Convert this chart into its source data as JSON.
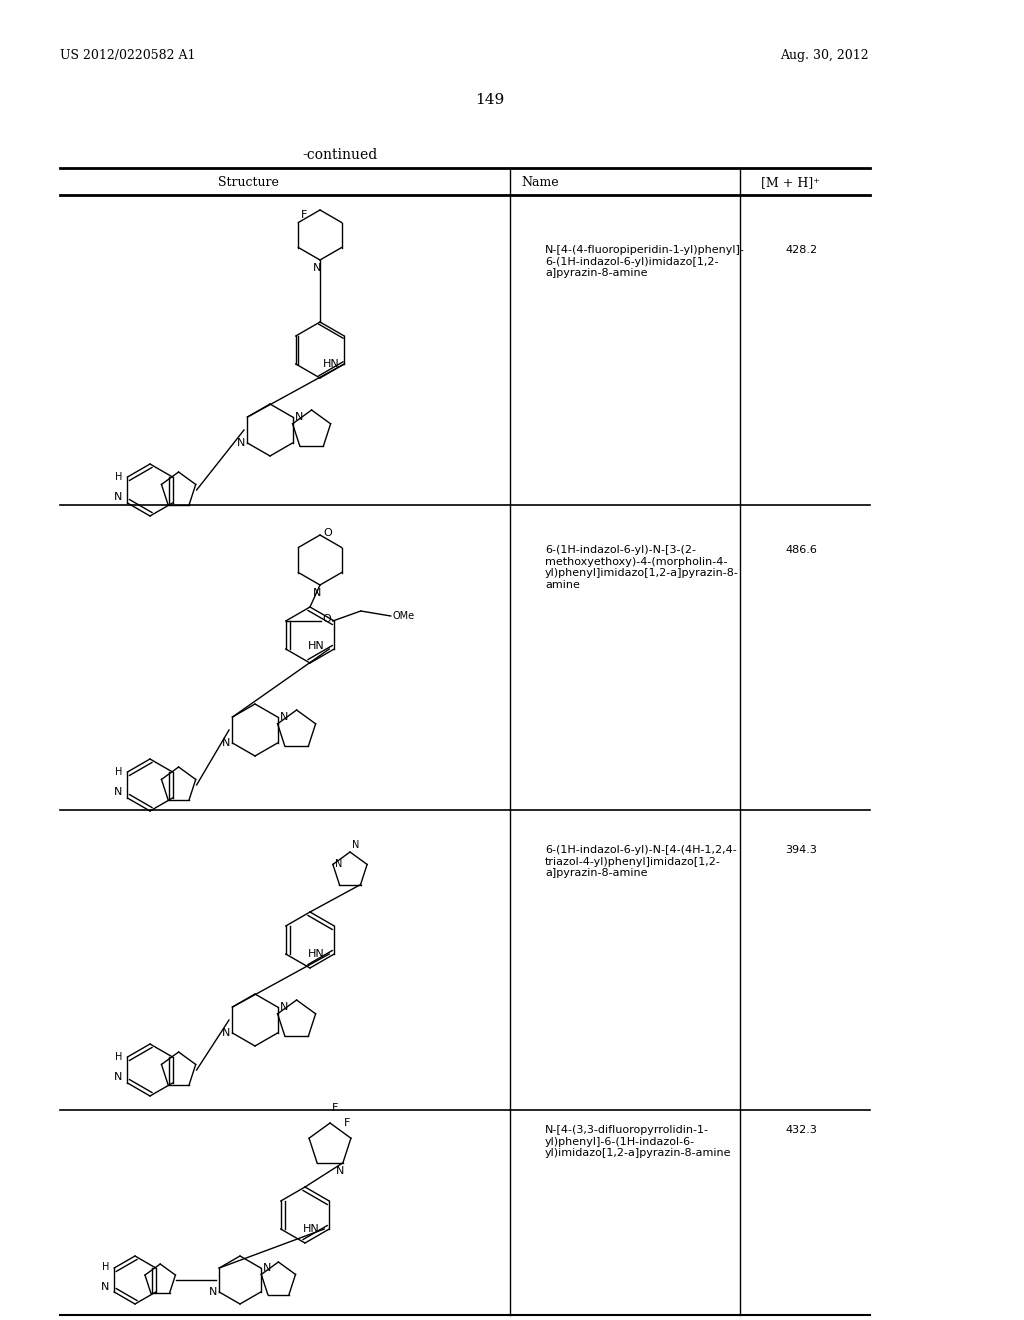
{
  "page_header_left": "US 2012/0220582 A1",
  "page_header_right": "Aug. 30, 2012",
  "page_number": "149",
  "table_title": "-continued",
  "col1_header": "Structure",
  "col2_header": "Name",
  "col3_header": "[M + H]⁺",
  "row1_name": "N-[4-(4-fluoropiperidin-1-yl)phenyl]-\n6-(1H-indazol-6-yl)imidazo[1,2-\na]pyrazin-8-amine",
  "row1_mh": "428.2",
  "row2_name": "6-(1H-indazol-6-yl)-N-[3-(2-\nmethoxyethoxy)-4-(morpholin-4-\nyl)phenyl]imidazo[1,2-a]pyrazin-8-\namine",
  "row2_mh": "486.6",
  "row3_name": "6-(1H-indazol-6-yl)-N-[4-(4H-1,2,4-\ntriazol-4-yl)phenyl]imidazo[1,2-\na]pyrazin-8-amine",
  "row3_mh": "394.3",
  "row4_name": "N-[4-(3,3-difluoropyrrolidin-1-\nyl)phenyl]-6-(1H-indazol-6-\nyl)imidazo[1,2-a]pyrazin-8-amine",
  "row4_mh": "432.3",
  "bg_color": "#ffffff",
  "text_color": "#000000",
  "line_color": "#000000"
}
